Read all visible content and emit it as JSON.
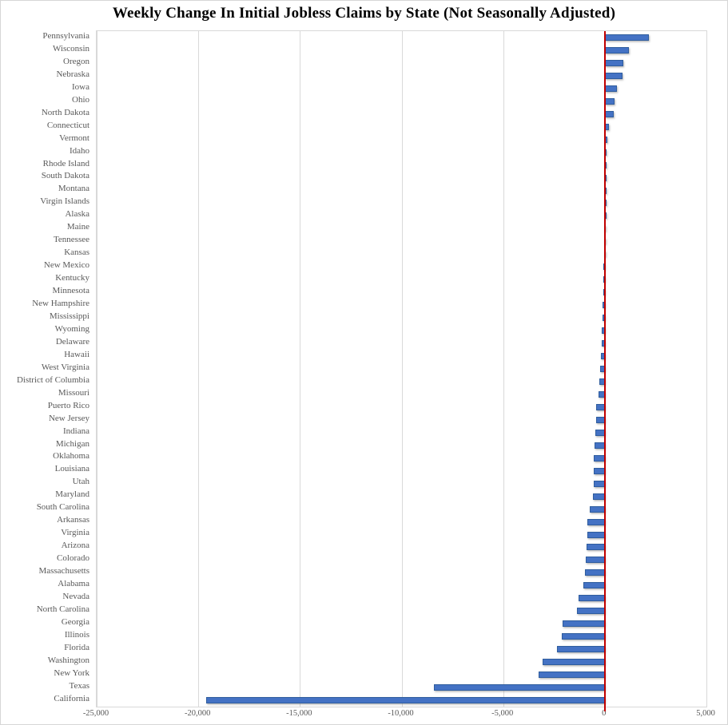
{
  "chart_data": {
    "type": "bar",
    "orientation": "horizontal",
    "title": "Weekly Change In Initial Jobless Claims by State (Not Seasonally Adjusted)",
    "categories": [
      "Pennsylvania",
      "Wisconsin",
      "Oregon",
      "Nebraska",
      "Iowa",
      "Ohio",
      "North Dakota",
      "Connecticut",
      "Vermont",
      "Idaho",
      "Rhode Island",
      "South Dakota",
      "Montana",
      "Virgin Islands",
      "Alaska",
      "Maine",
      "Tennessee",
      "Kansas",
      "New Mexico",
      "Kentucky",
      "Minnesota",
      "New Hampshire",
      "Mississippi",
      "Wyoming",
      "Delaware",
      "Hawaii",
      "West Virginia",
      "District of Columbia",
      "Missouri",
      "Puerto Rico",
      "New Jersey",
      "Indiana",
      "Michigan",
      "Oklahoma",
      "Louisiana",
      "Utah",
      "Maryland",
      "South Carolina",
      "Arkansas",
      "Virginia",
      "Arizona",
      "Colorado",
      "Massachusetts",
      "Alabama",
      "Nevada",
      "North Carolina",
      "Georgia",
      "Illinois",
      "Florida",
      "Washington",
      "New York",
      "Texas",
      "California"
    ],
    "values": [
      2150,
      1170,
      900,
      860,
      580,
      470,
      420,
      220,
      130,
      100,
      90,
      50,
      10,
      0,
      -10,
      -20,
      -35,
      -45,
      -55,
      -70,
      -85,
      -110,
      -125,
      -145,
      -170,
      -180,
      -210,
      -250,
      -290,
      -435,
      -445,
      -470,
      -500,
      -535,
      -545,
      -560,
      -600,
      -750,
      -850,
      -870,
      -885,
      -950,
      -965,
      -1040,
      -1300,
      -1380,
      -2090,
      -2130,
      -2360,
      -3080,
      -3250,
      -8400,
      -19600
    ],
    "x_axis": {
      "min": -25000,
      "max": 5000,
      "step": 5000,
      "tick_labels": [
        "-25,000",
        "-20,000",
        "-15,000",
        "-10,000",
        "-5,000",
        "0",
        "5,000"
      ]
    },
    "grid": true,
    "legend": false,
    "colors": {
      "bar_fill": "#4472C4",
      "bar_border": "#2F5D9E",
      "zero_line": "#C00000",
      "gridline": "#D9D9D9",
      "axis_text": "#595959",
      "title_text": "#000000"
    }
  }
}
